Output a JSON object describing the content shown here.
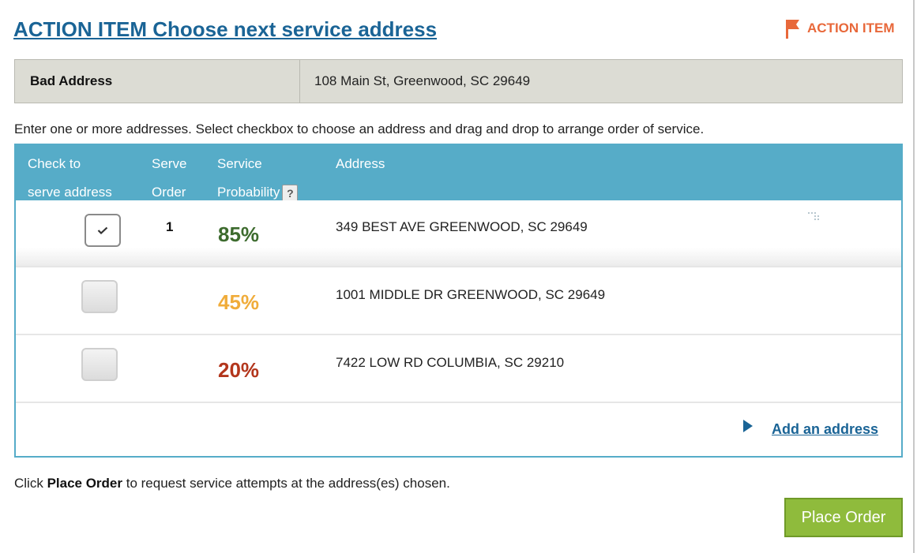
{
  "header": {
    "title": "ACTION ITEM Choose next service address",
    "badge_label": "ACTION ITEM",
    "badge_icon": "flag-icon",
    "badge_color": "#e8683a"
  },
  "bad_address": {
    "label": "Bad Address",
    "value": "108 Main St, Greenwood, SC 29649"
  },
  "instructions": "Enter one or more addresses. Select checkbox to choose an address and drag and drop to arrange order of service.",
  "table": {
    "columns": {
      "check_line1": "Check to",
      "check_line2": "serve address",
      "order_line1": "Serve",
      "order_line2": "Order",
      "prob_line1": "Service",
      "prob_line2": "Probability",
      "help_label": "?",
      "address": "Address"
    },
    "header_color": "#56acc8",
    "rows": [
      {
        "checked": true,
        "serve_order": "1",
        "probability": "85%",
        "probability_color": "#3d6b2e",
        "address": "349 BEST AVE GREENWOOD, SC 29649"
      },
      {
        "checked": false,
        "serve_order": "",
        "probability": "45%",
        "probability_color": "#f0ac3a",
        "address": "1001 MIDDLE DR GREENWOOD, SC 29649"
      },
      {
        "checked": false,
        "serve_order": "",
        "probability": "20%",
        "probability_color": "#b3361c",
        "address": "7422 LOW RD COLUMBIA, SC 29210"
      }
    ],
    "add_address_label": "Add an address"
  },
  "footer": {
    "text_before": "Click ",
    "text_bold": "Place Order",
    "text_after": " to request service attempts at the address(es) chosen."
  },
  "place_order_label": "Place Order",
  "accent_color": "#8fbb3c"
}
